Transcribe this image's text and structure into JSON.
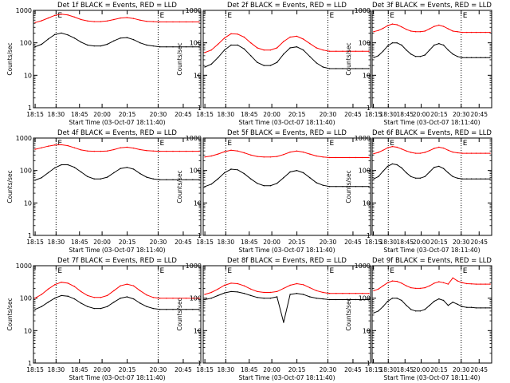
{
  "figure": {
    "start_time_label": "Start Time (03-Oct-07 18:11:40)",
    "ylabel": "Counts/sec",
    "x_tick_labels": [
      "18:15",
      "18:30",
      "18:45",
      "20:00",
      "20:15",
      "20:30",
      "20:45"
    ],
    "y_tick_labels": [
      "1",
      "10",
      "100",
      "1000"
    ],
    "marker_labels": [
      "E",
      "E"
    ],
    "colors": {
      "events": "#000000",
      "lld": "#ff0000",
      "axes": "#000000"
    }
  },
  "chart_data": [
    {
      "type": "line",
      "title": "Det 1f BLACK = Events, RED = LLD",
      "xlabel": "Start Time (03-Oct-07 18:11:40)",
      "ylabel": "Counts/sec",
      "yscale": "log",
      "ylim": [
        1,
        1000
      ],
      "grid": false,
      "x": [
        0,
        0.04,
        0.08,
        0.12,
        0.16,
        0.2,
        0.24,
        0.28,
        0.32,
        0.36,
        0.4,
        0.44,
        0.48,
        0.52,
        0.56,
        0.6,
        0.64,
        0.68,
        0.72,
        0.76,
        0.8,
        0.84,
        0.88,
        0.92,
        0.96,
        1.0
      ],
      "series": [
        {
          "name": "Events",
          "color": "#000000",
          "values": [
            75,
            90,
            130,
            180,
            200,
            175,
            140,
            105,
            85,
            80,
            80,
            90,
            115,
            140,
            145,
            125,
            100,
            85,
            80,
            75,
            75,
            75,
            75,
            75,
            75,
            75
          ]
        },
        {
          "name": "LLD",
          "color": "#ff0000",
          "values": [
            420,
            480,
            580,
            700,
            760,
            720,
            620,
            520,
            470,
            450,
            450,
            470,
            520,
            580,
            600,
            560,
            500,
            460,
            450,
            440,
            440,
            440,
            440,
            440,
            440,
            440
          ]
        }
      ]
    },
    {
      "type": "line",
      "title": "Det 2f BLACK = Events, RED = LLD",
      "xlabel": "Start Time (03-Oct-07 18:11:40)",
      "ylabel": "Counts/sec",
      "yscale": "log",
      "ylim": [
        1,
        1000
      ],
      "grid": false,
      "x": [
        0,
        0.04,
        0.08,
        0.12,
        0.16,
        0.2,
        0.24,
        0.28,
        0.32,
        0.36,
        0.4,
        0.44,
        0.48,
        0.52,
        0.56,
        0.6,
        0.64,
        0.68,
        0.72,
        0.76,
        0.8,
        0.84,
        0.88,
        0.92,
        0.96,
        1.0
      ],
      "series": [
        {
          "name": "Events",
          "color": "#000000",
          "values": [
            18,
            22,
            35,
            60,
            85,
            85,
            65,
            40,
            25,
            20,
            20,
            25,
            45,
            70,
            75,
            60,
            38,
            24,
            18,
            16,
            16,
            16,
            16,
            16,
            16,
            16
          ]
        },
        {
          "name": "LLD",
          "color": "#ff0000",
          "values": [
            50,
            60,
            90,
            140,
            190,
            185,
            150,
            100,
            70,
            60,
            60,
            70,
            110,
            150,
            160,
            130,
            95,
            70,
            60,
            55,
            55,
            55,
            55,
            55,
            55,
            55
          ]
        }
      ]
    },
    {
      "type": "line",
      "title": "Det 3f BLACK = Events, RED = LLD",
      "xlabel": "Start Time (03-Oct-07 18:11:40)",
      "ylabel": "Counts/sec",
      "yscale": "log",
      "ylim": [
        1,
        1000
      ],
      "grid": false,
      "x": [
        0,
        0.04,
        0.08,
        0.12,
        0.16,
        0.2,
        0.24,
        0.28,
        0.32,
        0.36,
        0.4,
        0.44,
        0.48,
        0.52,
        0.56,
        0.6,
        0.64,
        0.68,
        0.72,
        0.76,
        0.8,
        0.84,
        0.88,
        0.92,
        0.96,
        1.0
      ],
      "series": [
        {
          "name": "Events",
          "color": "#000000",
          "values": [
            35,
            40,
            55,
            80,
            100,
            100,
            85,
            60,
            45,
            38,
            38,
            42,
            60,
            85,
            95,
            85,
            60,
            45,
            38,
            35,
            35,
            35,
            35,
            35,
            35,
            35
          ]
        },
        {
          "name": "LLD",
          "color": "#ff0000",
          "values": [
            220,
            240,
            280,
            340,
            380,
            360,
            310,
            260,
            230,
            220,
            220,
            230,
            270,
            320,
            350,
            320,
            270,
            230,
            220,
            210,
            210,
            210,
            210,
            210,
            210,
            210
          ]
        }
      ]
    },
    {
      "type": "line",
      "title": "Det 4f BLACK = Events, RED = LLD",
      "xlabel": "Start Time (03-Oct-07 18:11:40)",
      "ylabel": "Counts/sec",
      "yscale": "log",
      "ylim": [
        1,
        1000
      ],
      "grid": false,
      "x": [
        0,
        0.04,
        0.08,
        0.12,
        0.16,
        0.2,
        0.24,
        0.28,
        0.32,
        0.36,
        0.4,
        0.44,
        0.48,
        0.52,
        0.56,
        0.6,
        0.64,
        0.68,
        0.72,
        0.76,
        0.8,
        0.84,
        0.88,
        0.92,
        0.96,
        1.0
      ],
      "series": [
        {
          "name": "Events",
          "color": "#000000",
          "values": [
            50,
            60,
            85,
            120,
            150,
            150,
            125,
            90,
            65,
            55,
            55,
            62,
            85,
            115,
            125,
            110,
            80,
            62,
            55,
            52,
            52,
            52,
            52,
            52,
            52,
            52
          ]
        },
        {
          "name": "LLD",
          "color": "#ff0000",
          "values": [
            450,
            500,
            560,
            610,
            620,
            580,
            500,
            430,
            400,
            390,
            390,
            400,
            440,
            500,
            520,
            490,
            440,
            410,
            400,
            390,
            390,
            390,
            390,
            390,
            390,
            390
          ]
        }
      ]
    },
    {
      "type": "line",
      "title": "Det 5f BLACK = Events, RED = LLD",
      "xlabel": "Start Time (03-Oct-07 18:11:40)",
      "ylabel": "Counts/sec",
      "yscale": "log",
      "ylim": [
        1,
        1000
      ],
      "grid": false,
      "x": [
        0,
        0.04,
        0.08,
        0.12,
        0.16,
        0.2,
        0.24,
        0.28,
        0.32,
        0.36,
        0.4,
        0.44,
        0.48,
        0.52,
        0.56,
        0.6,
        0.64,
        0.68,
        0.72,
        0.76,
        0.8,
        0.84,
        0.88,
        0.92,
        0.96,
        1.0
      ],
      "series": [
        {
          "name": "Events",
          "color": "#000000",
          "values": [
            32,
            38,
            55,
            85,
            110,
            105,
            80,
            55,
            40,
            34,
            34,
            40,
            60,
            90,
            100,
            85,
            60,
            42,
            35,
            32,
            32,
            32,
            32,
            32,
            32,
            32
          ]
        },
        {
          "name": "LLD",
          "color": "#ff0000",
          "values": [
            260,
            280,
            320,
            380,
            420,
            400,
            350,
            300,
            270,
            260,
            260,
            270,
            310,
            370,
            400,
            370,
            320,
            280,
            260,
            250,
            250,
            250,
            250,
            250,
            250,
            250
          ]
        }
      ]
    },
    {
      "type": "line",
      "title": "Det 6f BLACK = Events, RED = LLD",
      "xlabel": "Start Time (03-Oct-07 18:11:40)",
      "ylabel": "Counts/sec",
      "yscale": "log",
      "ylim": [
        1,
        1000
      ],
      "grid": false,
      "x": [
        0,
        0.04,
        0.08,
        0.12,
        0.16,
        0.2,
        0.24,
        0.28,
        0.32,
        0.36,
        0.4,
        0.44,
        0.48,
        0.52,
        0.56,
        0.6,
        0.64,
        0.68,
        0.72,
        0.76,
        0.8,
        0.84,
        0.88,
        0.92,
        0.96,
        1.0
      ],
      "series": [
        {
          "name": "Events",
          "color": "#000000",
          "values": [
            55,
            65,
            95,
            135,
            160,
            150,
            120,
            85,
            65,
            58,
            58,
            65,
            90,
            125,
            135,
            115,
            85,
            65,
            58,
            55,
            55,
            55,
            55,
            55,
            55,
            55
          ]
        },
        {
          "name": "LLD",
          "color": "#ff0000",
          "values": [
            330,
            360,
            420,
            500,
            550,
            520,
            460,
            400,
            360,
            340,
            340,
            360,
            410,
            480,
            520,
            490,
            420,
            370,
            350,
            340,
            340,
            340,
            340,
            340,
            340,
            340
          ]
        }
      ]
    },
    {
      "type": "line",
      "title": "Det 7f BLACK = Events, RED = LLD",
      "xlabel": "Start Time (03-Oct-07 18:11:40)",
      "ylabel": "Counts/sec",
      "yscale": "log",
      "ylim": [
        1,
        1000
      ],
      "grid": false,
      "x": [
        0,
        0.04,
        0.08,
        0.12,
        0.16,
        0.2,
        0.24,
        0.28,
        0.32,
        0.36,
        0.4,
        0.44,
        0.48,
        0.52,
        0.56,
        0.6,
        0.64,
        0.68,
        0.72,
        0.76,
        0.8,
        0.84,
        0.88,
        0.92,
        0.96,
        1.0
      ],
      "series": [
        {
          "name": "Events",
          "color": "#000000",
          "values": [
            45,
            55,
            75,
            100,
            120,
            115,
            95,
            70,
            55,
            48,
            48,
            55,
            75,
            100,
            110,
            95,
            70,
            55,
            48,
            45,
            45,
            45,
            45,
            45,
            45,
            45
          ]
        },
        {
          "name": "LLD",
          "color": "#ff0000",
          "values": [
            100,
            130,
            190,
            260,
            310,
            290,
            230,
            160,
            120,
            105,
            105,
            120,
            170,
            240,
            270,
            240,
            170,
            125,
            105,
            100,
            100,
            100,
            100,
            100,
            100,
            100
          ]
        }
      ]
    },
    {
      "type": "line",
      "title": "Det 8f BLACK = Events, RED = LLD",
      "xlabel": "Start Time (03-Oct-07 18:11:40)",
      "ylabel": "Counts/sec",
      "yscale": "log",
      "ylim": [
        1,
        1000
      ],
      "grid": false,
      "x": [
        0,
        0.04,
        0.08,
        0.12,
        0.16,
        0.2,
        0.24,
        0.28,
        0.32,
        0.36,
        0.4,
        0.44,
        0.48,
        0.52,
        0.56,
        0.6,
        0.64,
        0.68,
        0.72,
        0.76,
        0.8,
        0.84,
        0.88,
        0.92,
        0.96,
        1.0
      ],
      "series": [
        {
          "name": "Events",
          "color": "#000000",
          "values": [
            90,
            100,
            120,
            145,
            160,
            155,
            140,
            120,
            105,
            100,
            100,
            110,
            18,
            130,
            140,
            130,
            110,
            100,
            95,
            90,
            90,
            90,
            90,
            90,
            90,
            90
          ]
        },
        {
          "name": "LLD",
          "color": "#ff0000",
          "values": [
            130,
            150,
            190,
            250,
            290,
            280,
            240,
            190,
            160,
            150,
            150,
            160,
            200,
            250,
            280,
            260,
            210,
            170,
            150,
            140,
            140,
            140,
            140,
            140,
            140,
            140
          ]
        }
      ]
    },
    {
      "type": "line",
      "title": "Det 9f BLACK = Events, RED = LLD",
      "xlabel": "Start Time (03-Oct-07 18:11:40)",
      "ylabel": "Counts/sec",
      "yscale": "log",
      "ylim": [
        1,
        1000
      ],
      "grid": false,
      "x": [
        0,
        0.04,
        0.08,
        0.12,
        0.16,
        0.2,
        0.24,
        0.28,
        0.32,
        0.36,
        0.4,
        0.44,
        0.48,
        0.52,
        0.56,
        0.6,
        0.64,
        0.68,
        0.72,
        0.76,
        0.8,
        0.84,
        0.88,
        0.92,
        0.96,
        1.0
      ],
      "series": [
        {
          "name": "Events",
          "color": "#000000",
          "values": [
            35,
            40,
            55,
            80,
            100,
            100,
            85,
            60,
            45,
            40,
            40,
            45,
            60,
            80,
            95,
            85,
            60,
            75,
            65,
            55,
            52,
            52,
            50,
            50,
            50,
            50
          ]
        },
        {
          "name": "LLD",
          "color": "#ff0000",
          "values": [
            170,
            190,
            240,
            300,
            340,
            330,
            290,
            240,
            210,
            200,
            200,
            210,
            240,
            290,
            320,
            300,
            270,
            420,
            340,
            300,
            280,
            275,
            270,
            270,
            270,
            270
          ]
        }
      ]
    }
  ]
}
